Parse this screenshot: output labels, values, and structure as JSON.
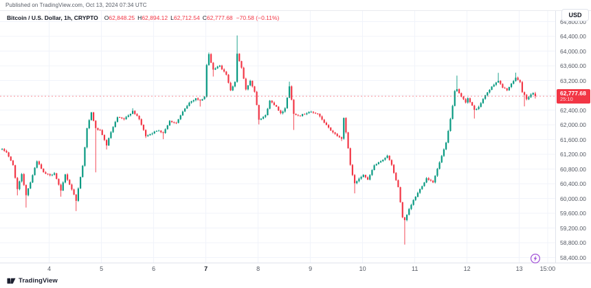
{
  "published_bar": {
    "text": "Published on TradingView.com, Oct 13, 2024 07:34 UTC"
  },
  "header": {
    "symbol_title": "Bitcoin / U.S. Dollar, 1h, CRYPTO",
    "ohlc": {
      "o_label": "O",
      "o_value": "62,848.25",
      "h_label": "H",
      "h_value": "62,894.12",
      "l_label": "L",
      "l_value": "62,712.54",
      "c_label": "C",
      "c_value": "62,777.68",
      "change": "−70.58 (−0.11%)"
    }
  },
  "currency_button": {
    "label": "USD"
  },
  "price_label": {
    "price": "62,777.68",
    "countdown": "25:10"
  },
  "footer": {
    "brand": "TradingView"
  },
  "icons": {
    "logo": "tradingview-mark",
    "boost": "lightning-bolt-circle"
  },
  "colors": {
    "up": "#089981",
    "down": "#f23645",
    "grid": "#f0f3fa",
    "axis_text": "#555a64",
    "header_text": "#131722",
    "badge_bg": "#f23645",
    "badge_text": "#ffffff",
    "border": "#e0e3eb",
    "purple": "#a04fd6",
    "brand_text": "#1c2030"
  },
  "chart_data": {
    "type": "candlestick",
    "symbol": "Bitcoin / U.S. Dollar",
    "interval": "1h",
    "exchange": "CRYPTO",
    "current": {
      "open": 62848.25,
      "high": 62894.12,
      "low": 62712.54,
      "close": 62777.68,
      "change": -70.58,
      "change_pct": -0.11
    },
    "countdown": "25:10",
    "price_axis_range": {
      "min": 58260,
      "max": 65090
    },
    "grid": true,
    "price_ticks": [
      {
        "p": 58400,
        "label": "58,400.00"
      },
      {
        "p": 58800,
        "label": "58,800.00"
      },
      {
        "p": 59200,
        "label": "59,200.00"
      },
      {
        "p": 59600,
        "label": "59,600.00"
      },
      {
        "p": 60000,
        "label": "60,000.00"
      },
      {
        "p": 60400,
        "label": "60,400.00"
      },
      {
        "p": 60800,
        "label": "60,800.00"
      },
      {
        "p": 61200,
        "label": "61,200.00"
      },
      {
        "p": 61600,
        "label": "61,600.00"
      },
      {
        "p": 62000,
        "label": "62,000.00"
      },
      {
        "p": 62400,
        "label": "62,400.00"
      },
      {
        "p": 62800,
        "label": "62,800.00"
      },
      {
        "p": 63200,
        "label": "63,200.00"
      },
      {
        "p": 63600,
        "label": "63,600.00"
      },
      {
        "p": 64000,
        "label": "64,000.00"
      },
      {
        "p": 64400,
        "label": "64,400.00"
      },
      {
        "p": 64800,
        "label": "64,800.00"
      }
    ],
    "time_ticks": [
      {
        "t": 22,
        "label": "4"
      },
      {
        "t": 46,
        "label": "5"
      },
      {
        "t": 70,
        "label": "6"
      },
      {
        "t": 94,
        "label": "7",
        "bold": true
      },
      {
        "t": 118,
        "label": "8"
      },
      {
        "t": 142,
        "label": "9"
      },
      {
        "t": 166,
        "label": "10"
      },
      {
        "t": 190,
        "label": "11"
      },
      {
        "t": 214,
        "label": "12"
      },
      {
        "t": 238,
        "label": "13"
      },
      {
        "t": 251,
        "label": "15:00"
      }
    ],
    "candle_count": 246,
    "seed": 1234567,
    "keyframes": [
      [
        0,
        61330
      ],
      [
        2,
        61260
      ],
      [
        5,
        60900
      ],
      [
        7,
        60250
      ],
      [
        9,
        60650
      ],
      [
        11,
        60100
      ],
      [
        13,
        60450
      ],
      [
        16,
        61020
      ],
      [
        19,
        60700
      ],
      [
        22,
        60620
      ],
      [
        24,
        60700
      ],
      [
        27,
        60200
      ],
      [
        29,
        60650
      ],
      [
        32,
        60250
      ],
      [
        34,
        59950
      ],
      [
        37,
        60900
      ],
      [
        39,
        61900
      ],
      [
        41,
        62330
      ],
      [
        43,
        61900
      ],
      [
        45,
        61840
      ],
      [
        48,
        61450
      ],
      [
        50,
        61800
      ],
      [
        53,
        62200
      ],
      [
        56,
        62150
      ],
      [
        58,
        62250
      ],
      [
        60,
        62380
      ],
      [
        63,
        62150
      ],
      [
        66,
        61700
      ],
      [
        69,
        61780
      ],
      [
        72,
        61850
      ],
      [
        74,
        61780
      ],
      [
        77,
        62100
      ],
      [
        80,
        62050
      ],
      [
        83,
        62350
      ],
      [
        86,
        62600
      ],
      [
        89,
        62720
      ],
      [
        91,
        62650
      ],
      [
        93,
        62760
      ],
      [
        94,
        63620
      ],
      [
        95,
        63900
      ],
      [
        97,
        63500
      ],
      [
        100,
        63600
      ],
      [
        103,
        63350
      ],
      [
        105,
        62950
      ],
      [
        107,
        63150
      ],
      [
        108,
        63920
      ],
      [
        110,
        63550
      ],
      [
        112,
        62950
      ],
      [
        114,
        63200
      ],
      [
        116,
        62900
      ],
      [
        117,
        62550
      ],
      [
        118,
        62150
      ],
      [
        121,
        62250
      ],
      [
        123,
        62650
      ],
      [
        126,
        62500
      ],
      [
        128,
        62300
      ],
      [
        130,
        62450
      ],
      [
        132,
        63050
      ],
      [
        134,
        62300
      ],
      [
        137,
        62250
      ],
      [
        141,
        62350
      ],
      [
        145,
        62300
      ],
      [
        148,
        62050
      ],
      [
        151,
        61850
      ],
      [
        154,
        61700
      ],
      [
        156,
        61620
      ],
      [
        157,
        62200
      ],
      [
        158,
        61800
      ],
      [
        160,
        60900
      ],
      [
        162,
        60400
      ],
      [
        164,
        60550
      ],
      [
        166,
        60650
      ],
      [
        168,
        60500
      ],
      [
        171,
        60900
      ],
      [
        174,
        61000
      ],
      [
        177,
        61170
      ],
      [
        179,
        60900
      ],
      [
        182,
        60300
      ],
      [
        184,
        59500
      ],
      [
        185,
        59400
      ],
      [
        187,
        59700
      ],
      [
        189,
        59950
      ],
      [
        191,
        60150
      ],
      [
        193,
        60350
      ],
      [
        195,
        60550
      ],
      [
        198,
        60450
      ],
      [
        200,
        60800
      ],
      [
        202,
        61150
      ],
      [
        204,
        61500
      ],
      [
        206,
        62150
      ],
      [
        208,
        62900
      ],
      [
        209,
        62950
      ],
      [
        211,
        62750
      ],
      [
        213,
        62620
      ],
      [
        214,
        62720
      ],
      [
        217,
        62400
      ],
      [
        219,
        62480
      ],
      [
        221,
        62700
      ],
      [
        223,
        62880
      ],
      [
        226,
        63100
      ],
      [
        228,
        63200
      ],
      [
        230,
        63000
      ],
      [
        232,
        62950
      ],
      [
        234,
        63100
      ],
      [
        236,
        63280
      ],
      [
        238,
        63150
      ],
      [
        239,
        62900
      ],
      [
        241,
        62700
      ],
      [
        243,
        62820
      ],
      [
        244,
        62848
      ],
      [
        245,
        62777.68
      ]
    ],
    "spikes": [
      [
        7,
        "low",
        60085
      ],
      [
        11,
        "low",
        59755
      ],
      [
        27,
        "low",
        60050
      ],
      [
        34,
        "low",
        59660
      ],
      [
        43,
        "low",
        60710
      ],
      [
        48,
        "low",
        61330
      ],
      [
        60,
        "high",
        62450
      ],
      [
        66,
        "low",
        61640
      ],
      [
        74,
        "low",
        61610
      ],
      [
        91,
        "low",
        62495
      ],
      [
        95,
        "high",
        63960
      ],
      [
        97,
        "low",
        63310
      ],
      [
        108,
        "high",
        64424
      ],
      [
        118,
        "low",
        62010
      ],
      [
        132,
        "high",
        63170
      ],
      [
        134,
        "low",
        61860
      ],
      [
        156,
        "low",
        61560
      ],
      [
        162,
        "low",
        60140
      ],
      [
        185,
        "low",
        58750
      ],
      [
        209,
        "high",
        63335
      ],
      [
        217,
        "low",
        62170
      ],
      [
        228,
        "high",
        63410
      ],
      [
        236,
        "high",
        63415
      ],
      [
        240,
        "low",
        62500
      ]
    ]
  }
}
